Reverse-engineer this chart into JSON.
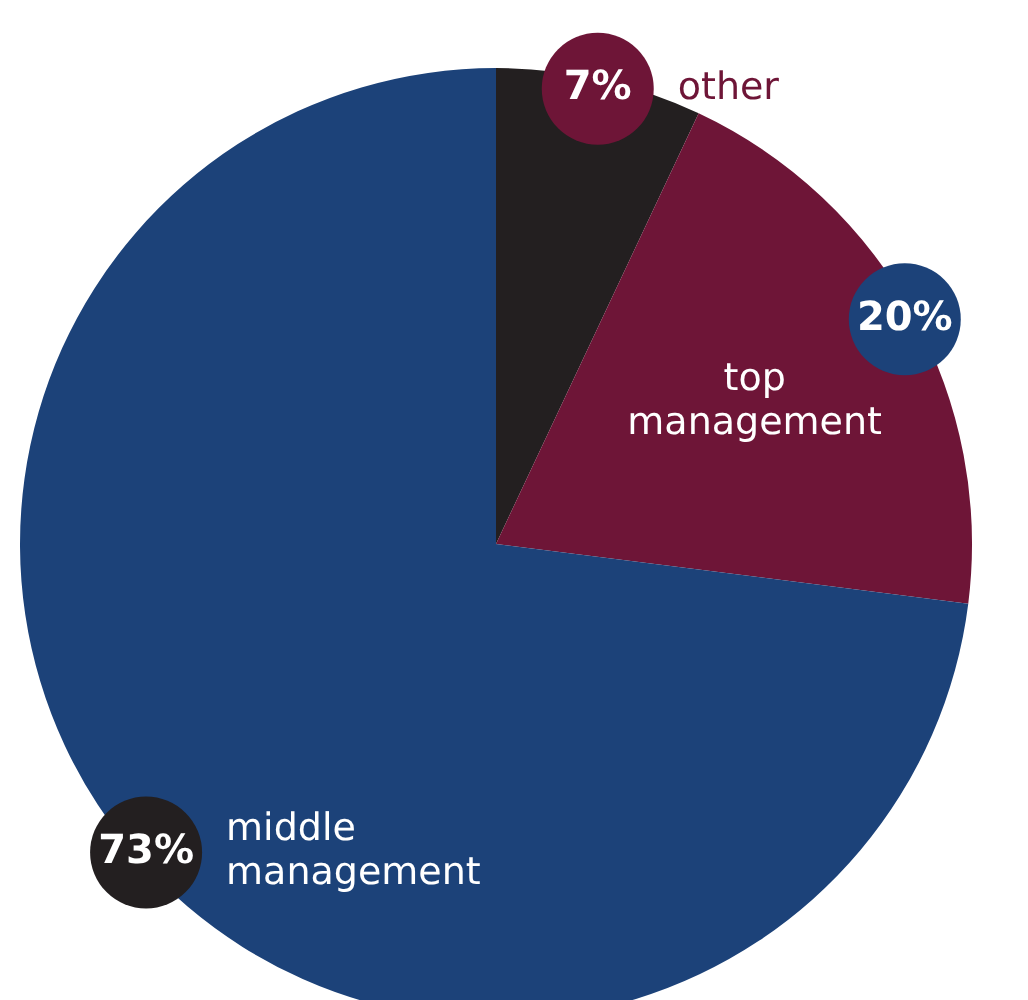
{
  "chart_data": {
    "type": "pie",
    "categories": [
      "other",
      "top management",
      "middle management"
    ],
    "values": [
      7,
      20,
      73
    ],
    "colors": [
      "#231f20",
      "#6e1537",
      "#1c4279"
    ],
    "value_labels": [
      "7%",
      "20%",
      "73%"
    ],
    "legend": false
  }
}
